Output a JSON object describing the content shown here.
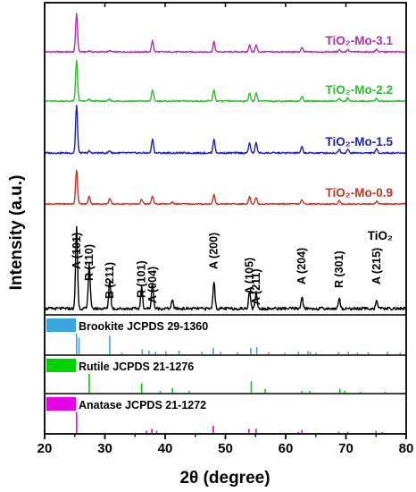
{
  "chart_data": {
    "type": "line",
    "xlabel": "2θ (degree)",
    "ylabel": "Intensity (a.u.)",
    "xlim": [
      20,
      80
    ],
    "x_ticks": [
      "20",
      "30",
      "40",
      "50",
      "60",
      "70",
      "80"
    ],
    "grid": false,
    "series": [
      {
        "name": "TiO₂-Mo-3.1",
        "color": "#b32db3",
        "peaks": [
          [
            25.3,
            100
          ],
          [
            27.4,
            3
          ],
          [
            30.8,
            3
          ],
          [
            37.9,
            30
          ],
          [
            48.1,
            26
          ],
          [
            54.0,
            18
          ],
          [
            55.1,
            18
          ],
          [
            62.7,
            11
          ],
          [
            68.9,
            6
          ],
          [
            70.3,
            6
          ],
          [
            75.1,
            7
          ]
        ]
      },
      {
        "name": "TiO₂-Mo-2.2",
        "color": "#2dbd2d",
        "peaks": [
          [
            25.3,
            100
          ],
          [
            27.4,
            4
          ],
          [
            30.8,
            4
          ],
          [
            37.9,
            28
          ],
          [
            48.1,
            28
          ],
          [
            54.0,
            20
          ],
          [
            55.1,
            20
          ],
          [
            62.7,
            12
          ],
          [
            68.9,
            7
          ],
          [
            70.3,
            7
          ],
          [
            75.1,
            7
          ]
        ]
      },
      {
        "name": "TiO₂-Mo-1.5",
        "color": "#1f1fbf",
        "peaks": [
          [
            25.3,
            100
          ],
          [
            27.4,
            4
          ],
          [
            30.8,
            5
          ],
          [
            37.9,
            30
          ],
          [
            48.1,
            30
          ],
          [
            54.0,
            22
          ],
          [
            55.1,
            22
          ],
          [
            62.7,
            13
          ],
          [
            68.9,
            8
          ],
          [
            70.3,
            8
          ],
          [
            75.1,
            8
          ]
        ]
      },
      {
        "name": "TiO₂-Mo-0.9",
        "color": "#c8321e",
        "peaks": [
          [
            25.3,
            100
          ],
          [
            27.4,
            22
          ],
          [
            30.8,
            16
          ],
          [
            36.1,
            14
          ],
          [
            37.9,
            24
          ],
          [
            41.2,
            6
          ],
          [
            48.1,
            28
          ],
          [
            54.0,
            22
          ],
          [
            55.1,
            20
          ],
          [
            62.7,
            12
          ],
          [
            68.9,
            10
          ],
          [
            75.1,
            8
          ]
        ]
      },
      {
        "name": "TiO₂",
        "color": "#000000",
        "peaks": [
          [
            25.3,
            100
          ],
          [
            27.4,
            55
          ],
          [
            30.8,
            35
          ],
          [
            36.1,
            25
          ],
          [
            37.9,
            32
          ],
          [
            41.2,
            10
          ],
          [
            48.1,
            33
          ],
          [
            54.0,
            22
          ],
          [
            55.1,
            20
          ],
          [
            62.7,
            14
          ],
          [
            68.9,
            12
          ],
          [
            75.1,
            10
          ]
        ]
      }
    ],
    "peak_annotations": [
      {
        "text": "A (101)",
        "x": 25.3
      },
      {
        "text": "R (110)",
        "x": 27.4
      },
      {
        "text": "B (211)",
        "x": 30.8
      },
      {
        "text": "R (101)",
        "x": 36.1
      },
      {
        "text": "A (004)",
        "x": 37.9
      },
      {
        "text": "A (200)",
        "x": 48.1
      },
      {
        "text": "A (105)",
        "x": 54.0
      },
      {
        "text": "A (211)",
        "x": 55.1
      },
      {
        "text": "A (204)",
        "x": 62.7
      },
      {
        "text": "R (301)",
        "x": 68.9
      },
      {
        "text": "A (215)",
        "x": 75.1
      }
    ],
    "reference_patterns": [
      {
        "name": "Brookite JCPDS 29-1360",
        "color": "#3aa6e0",
        "lines": [
          [
            25.3,
            100
          ],
          [
            25.7,
            80
          ],
          [
            30.8,
            90
          ],
          [
            32.8,
            8
          ],
          [
            36.2,
            25
          ],
          [
            37.3,
            18
          ],
          [
            38.4,
            12
          ],
          [
            40.1,
            15
          ],
          [
            42.3,
            18
          ],
          [
            46.1,
            12
          ],
          [
            48.0,
            30
          ],
          [
            49.2,
            12
          ],
          [
            52.0,
            10
          ],
          [
            54.2,
            30
          ],
          [
            55.2,
            35
          ],
          [
            57.2,
            10
          ],
          [
            59.9,
            8
          ],
          [
            62.1,
            12
          ],
          [
            63.7,
            15
          ],
          [
            64.1,
            12
          ],
          [
            65.0,
            8
          ],
          [
            68.8,
            10
          ],
          [
            70.4,
            12
          ],
          [
            71.9,
            8
          ],
          [
            73.7,
            10
          ],
          [
            76.9,
            12
          ],
          [
            79.0,
            8
          ]
        ]
      },
      {
        "name": "Rutile JCPDS 21-1276",
        "color": "#00d400",
        "lines": [
          [
            27.4,
            100
          ],
          [
            36.1,
            50
          ],
          [
            39.2,
            10
          ],
          [
            41.2,
            25
          ],
          [
            44.0,
            10
          ],
          [
            54.3,
            60
          ],
          [
            56.6,
            20
          ],
          [
            62.7,
            10
          ],
          [
            64.0,
            10
          ],
          [
            69.0,
            20
          ],
          [
            69.8,
            10
          ],
          [
            72.4,
            5
          ],
          [
            76.5,
            5
          ]
        ]
      },
      {
        "name": "Anatase JCPDS 21-1272",
        "color": "#e600e6",
        "lines": [
          [
            25.3,
            100
          ],
          [
            36.9,
            10
          ],
          [
            37.8,
            20
          ],
          [
            38.6,
            10
          ],
          [
            48.0,
            35
          ],
          [
            53.9,
            20
          ],
          [
            55.1,
            20
          ],
          [
            62.1,
            5
          ],
          [
            62.7,
            14
          ],
          [
            68.8,
            6
          ],
          [
            70.3,
            6
          ],
          [
            75.0,
            10
          ],
          [
            76.0,
            4
          ]
        ]
      }
    ]
  }
}
